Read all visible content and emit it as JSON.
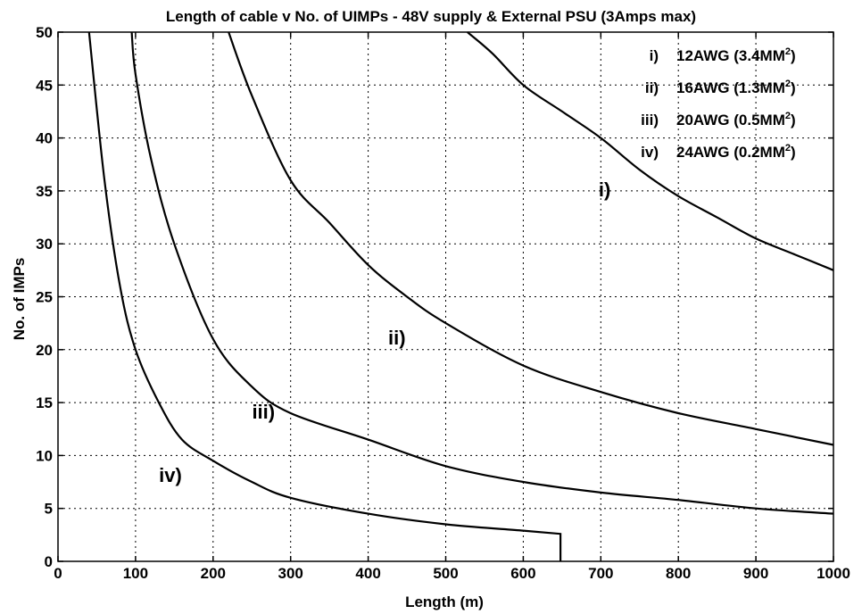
{
  "chart_data": {
    "type": "line",
    "title": "Length of cable v No. of UIMPs  -  48V supply & External PSU (3Amps max)",
    "xlabel": "Length (m)",
    "ylabel": "No. of IMPs",
    "xlim": [
      0,
      1000
    ],
    "ylim": [
      0,
      50
    ],
    "xticks": [
      "0",
      "100",
      "200",
      "300",
      "400",
      "500",
      "600",
      "700",
      "800",
      "900",
      "1000"
    ],
    "yticks": [
      "0",
      "5",
      "10",
      "15",
      "20",
      "25",
      "30",
      "35",
      "40",
      "45",
      "50"
    ],
    "grid": true,
    "legend_position": "top-right",
    "legend": [
      {
        "roman": "i)",
        "text": "12AWG (3.4MM",
        "sup": "2",
        "close": ")"
      },
      {
        "roman": "ii)",
        "text": "16AWG (1.3MM",
        "sup": "2",
        "close": ")"
      },
      {
        "roman": "iii)",
        "text": "20AWG (0.5MM",
        "sup": "2",
        "close": ")"
      },
      {
        "roman": "iv)",
        "text": "24AWG (0.2MM",
        "sup": "2",
        "close": ")"
      }
    ],
    "series": [
      {
        "name": "i)",
        "points": [
          [
            528,
            50
          ],
          [
            560,
            48
          ],
          [
            600,
            45
          ],
          [
            650,
            42.5
          ],
          [
            700,
            40
          ],
          [
            750,
            37
          ],
          [
            800,
            34.5
          ],
          [
            850,
            32.5
          ],
          [
            900,
            30.5
          ],
          [
            950,
            29
          ],
          [
            1000,
            27.5
          ]
        ]
      },
      {
        "name": "ii)",
        "points": [
          [
            220,
            50
          ],
          [
            250,
            44
          ],
          [
            300,
            36
          ],
          [
            350,
            32
          ],
          [
            400,
            28
          ],
          [
            450,
            25
          ],
          [
            500,
            22.5
          ],
          [
            600,
            18.5
          ],
          [
            700,
            16
          ],
          [
            800,
            14
          ],
          [
            900,
            12.5
          ],
          [
            1000,
            11
          ]
        ]
      },
      {
        "name": "iii)",
        "points": [
          [
            95,
            50
          ],
          [
            100,
            46
          ],
          [
            120,
            38
          ],
          [
            150,
            30
          ],
          [
            200,
            21
          ],
          [
            250,
            16.5
          ],
          [
            300,
            14
          ],
          [
            400,
            11.5
          ],
          [
            500,
            9
          ],
          [
            600,
            7.5
          ],
          [
            700,
            6.5
          ],
          [
            800,
            5.8
          ],
          [
            900,
            5
          ],
          [
            1000,
            4.5
          ]
        ]
      },
      {
        "name": "iv)",
        "points": [
          [
            40,
            50
          ],
          [
            60,
            36
          ],
          [
            80,
            26
          ],
          [
            100,
            20
          ],
          [
            130,
            15
          ],
          [
            160,
            11.5
          ],
          [
            200,
            9.5
          ],
          [
            250,
            7.5
          ],
          [
            300,
            6
          ],
          [
            400,
            4.5
          ],
          [
            500,
            3.5
          ],
          [
            600,
            2.9
          ],
          [
            648,
            2.6
          ],
          [
            648,
            0
          ]
        ]
      }
    ],
    "curve_labels": [
      {
        "text": "i)",
        "x": 705,
        "y": 34.5
      },
      {
        "text": "ii)",
        "x": 437,
        "y": 20.5
      },
      {
        "text": "iii)",
        "x": 265,
        "y": 13.5
      },
      {
        "text": "iv)",
        "x": 145,
        "y": 7.5
      }
    ]
  }
}
